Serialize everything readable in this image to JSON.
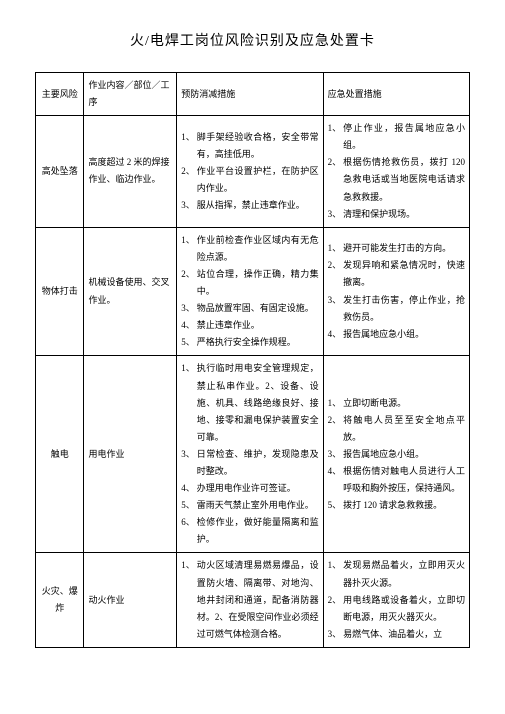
{
  "title": "火/电焊工岗位风险识别及应急处置卡",
  "headers": {
    "col1": "主要风险",
    "col2": "作业内容／部位／工序",
    "col3": "预防消减措施",
    "col4": "应急处置措施"
  },
  "rows": [
    {
      "risk": "高处坠落",
      "work": "高度超过 2 米的焊接作业、临边作业。",
      "prev": [
        "脚手架经验收合格，安全带常有，高挂低用。",
        "作业平台设置护栏，在防护区内作业。",
        "服从指挥，禁止违章作业。"
      ],
      "emer": [
        "停止作业，报告属地应急小组。",
        "根据伤情抢救伤员，拨打 120 急救电话或当地医院电话请求急救救援。",
        "清理和保护现场。"
      ]
    },
    {
      "risk": "物体打击",
      "work": "机械设备使用、交叉作业。",
      "prev": [
        "作业前检查作业区域内有无危险点源。",
        "站位合理，操作正确，精力集中。",
        "物品放置牢固、有固定设施。",
        "禁止违章作业。",
        "严格执行安全操作规程。"
      ],
      "emer": [
        "避开可能发生打击的方向。",
        "发现异响和紧急情况时，快速撤离。",
        "发生打击伤害，停止作业，抢救伤员。",
        "报告属地应急小组。"
      ]
    },
    {
      "risk": "触电",
      "work": "用电作业",
      "prev": [
        "执行临时用电安全管理规定，禁止私串作业。2、设备、设施、机具、线路绝缘良好、接地、接零和漏电保护装置安全可靠。",
        "日常检查、维护，发现隐患及时整改。",
        "办理用电作业许可签证。",
        "雷雨天气禁止室外用电作业。",
        "检修作业，做好能量隔离和监护。"
      ],
      "emer": [
        "立即切断电源。",
        "将触电人员至至安全地点平放。",
        "报告属地应急小组。",
        "根据伤情对触电人员进行人工呼吸和胸外按压，保持通风。",
        "拨打 120 请求急救救援。"
      ],
      "prevNums": [
        "1、",
        "3、",
        "4、",
        "5、",
        "6、"
      ]
    },
    {
      "risk": "火灾、爆炸",
      "work": "动火作业",
      "prev": [
        "动火区域清理易燃易爆品，设置防火墙、隔离带、对地沟、地井封闭和通道，配备消防器材。2、在受限空间作业必须经过可燃气体检测合格。"
      ],
      "emer": [
        "发现易燃品着火，立即用灭火器扑灭火源。",
        "用电线路或设备着火，立即切断电源，用灭火器灭火。",
        "易燃气体、油品着火，立"
      ]
    }
  ]
}
